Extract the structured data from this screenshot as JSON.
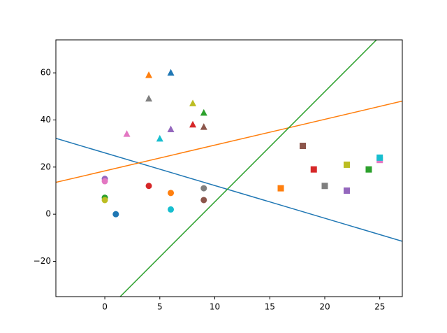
{
  "chart_data": {
    "type": "scatter",
    "xlim": [
      -4.45,
      27.05
    ],
    "ylim": [
      -35,
      74
    ],
    "xticks": [
      0,
      5,
      10,
      15,
      20,
      25
    ],
    "yticks": [
      {
        "value": -20,
        "label": "−20"
      },
      0,
      20,
      40,
      60
    ],
    "grid": false,
    "series": [
      {
        "type": "scatter",
        "marker": "o",
        "x": [
          1,
          6,
          0,
          4,
          0,
          9,
          0,
          9,
          0,
          6
        ],
        "values": [
          0,
          9,
          7,
          12,
          15,
          6,
          14,
          11,
          6,
          2
        ],
        "colors": [
          "#1f77b4",
          "#ff7f0e",
          "#2ca02c",
          "#d62728",
          "#9467bd",
          "#8c564b",
          "#e377c2",
          "#7f7f7f",
          "#bcbd22",
          "#17becf"
        ]
      },
      {
        "type": "scatter",
        "marker": "^",
        "x": [
          6,
          4,
          9,
          8,
          6,
          9,
          2,
          4,
          8,
          5
        ],
        "values": [
          60,
          59,
          43,
          38,
          36,
          37,
          34,
          49,
          47,
          32
        ],
        "colors": [
          "#1f77b4",
          "#ff7f0e",
          "#2ca02c",
          "#d62728",
          "#9467bd",
          "#8c564b",
          "#e377c2",
          "#7f7f7f",
          "#bcbd22",
          "#17becf"
        ]
      },
      {
        "type": "scatter",
        "marker": "s",
        "x": [
          16,
          24,
          19,
          22,
          18,
          25,
          20,
          22,
          25
        ],
        "values": [
          11,
          19,
          19,
          10,
          29,
          23,
          12,
          21,
          24
        ],
        "colors": [
          "#ff7f0e",
          "#2ca02c",
          "#d62728",
          "#9467bd",
          "#8c564b",
          "#e377c2",
          "#7f7f7f",
          "#bcbd22",
          "#17becf"
        ]
      },
      {
        "type": "line",
        "color": "#1f77b4",
        "x": [
          -4.45,
          27.05
        ],
        "values": [
          32.2,
          -11.5
        ]
      },
      {
        "type": "line",
        "color": "#ff7f0e",
        "x": [
          -4.45,
          27.05
        ],
        "values": [
          13.5,
          48
        ]
      },
      {
        "type": "line",
        "color": "#2ca02c",
        "x": [
          1.4,
          24.7
        ],
        "values": [
          -35,
          74
        ]
      }
    ]
  }
}
